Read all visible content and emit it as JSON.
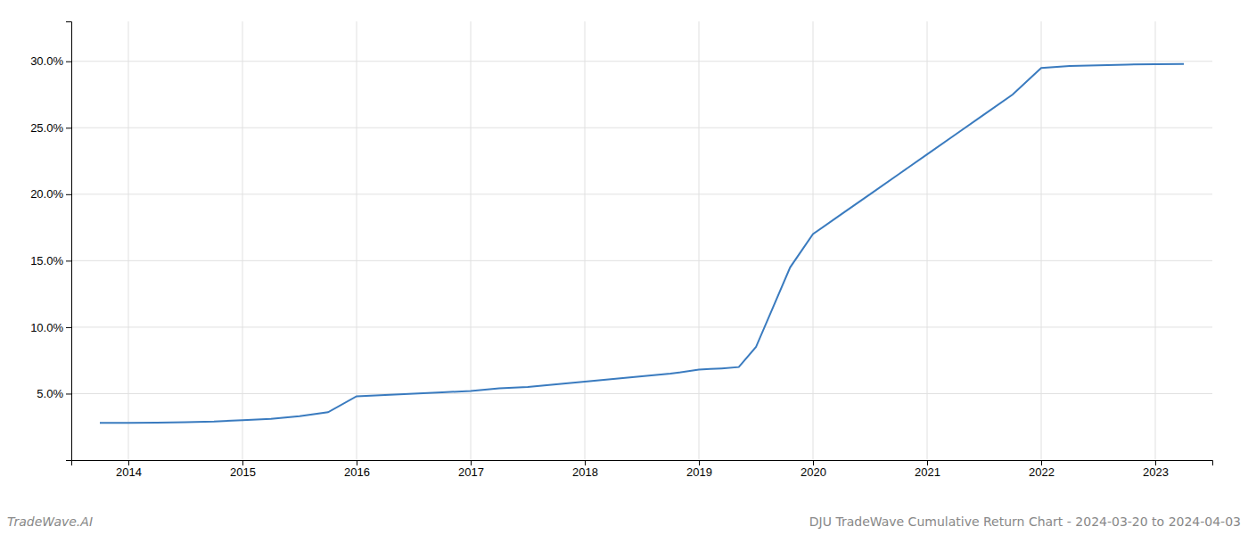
{
  "chart_data": {
    "type": "line",
    "title": "DJU TradeWave Cumulative Return Chart - 2024-03-20 to 2024-04-03",
    "annotations": [
      "TradeWave.AI"
    ],
    "x": [
      2013.75,
      2014.0,
      2014.25,
      2014.5,
      2014.75,
      2015.0,
      2015.25,
      2015.5,
      2015.75,
      2016.0,
      2016.25,
      2016.5,
      2016.75,
      2017.0,
      2017.25,
      2017.5,
      2017.75,
      2018.0,
      2018.25,
      2018.5,
      2018.75,
      2019.0,
      2019.1,
      2019.2,
      2019.35,
      2019.5,
      2019.65,
      2019.8,
      2020.0,
      2020.25,
      2020.5,
      2020.75,
      2021.0,
      2021.25,
      2021.5,
      2021.75,
      2022.0,
      2022.25,
      2022.5,
      2022.75,
      2023.0,
      2023.25
    ],
    "values": [
      2.8,
      2.8,
      2.82,
      2.85,
      2.9,
      3.0,
      3.1,
      3.3,
      3.6,
      4.8,
      4.9,
      5.0,
      5.1,
      5.2,
      5.4,
      5.5,
      5.7,
      5.9,
      6.1,
      6.3,
      6.5,
      6.8,
      6.85,
      6.9,
      7.0,
      8.5,
      11.5,
      14.5,
      17.0,
      18.5,
      20.0,
      21.5,
      23.0,
      24.5,
      26.0,
      27.5,
      29.5,
      29.65,
      29.7,
      29.75,
      29.78,
      29.8
    ],
    "color": "#3a7bbf",
    "xlim": [
      2013.5,
      2023.5
    ],
    "xticks": [
      2014,
      2015,
      2016,
      2017,
      2018,
      2019,
      2020,
      2021,
      2022,
      2023
    ],
    "ylim": [
      0.0,
      33.0
    ],
    "yticks": [
      {
        "value": 5.0,
        "label": "5.0%"
      },
      {
        "value": 10.0,
        "label": "10.0%"
      },
      {
        "value": 15.0,
        "label": "15.0%"
      },
      {
        "value": 20.0,
        "label": "20.0%"
      },
      {
        "value": 25.0,
        "label": "25.0%"
      },
      {
        "value": 30.0,
        "label": "30.0%"
      }
    ],
    "grid": true
  }
}
